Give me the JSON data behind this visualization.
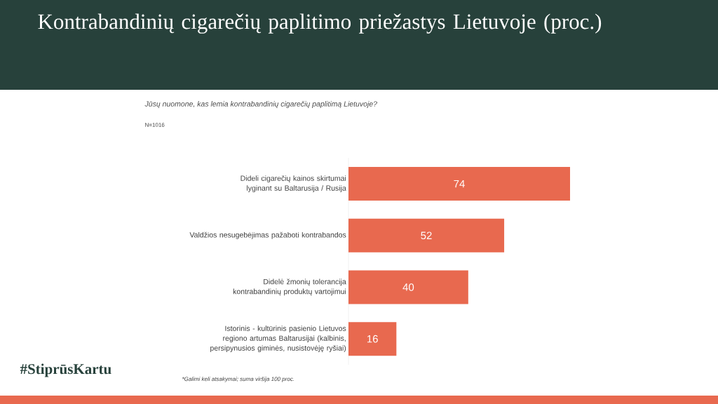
{
  "chart_data": {
    "type": "bar",
    "orientation": "horizontal",
    "title": "Kontrabandinių cigarečių paplitimo priežastys Lietuvoje (proc.)",
    "subtitle": "Jūsų nuomone, kas lemia kontrabandinių cigarečių paplitimą Lietuvoje?",
    "categories": [
      "Dideli cigarečių kainos skirtumai lyginant su Baltarusija / Rusija",
      "Valdžios nesugebėjimas pažaboti kontrabandos",
      "Didelė žmonių tolerancija kontrabandinių produktų vartojimui",
      "Istorinis - kultūrinis pasienio Lietuvos regiono artumas Baltarusijai (kalbinis, persipynusios giminės, nusistovėję ryšiai)"
    ],
    "values": [
      74,
      52,
      40,
      16
    ],
    "color": "#e8694f",
    "data_labels": true,
    "annotations": [
      "N=1016",
      "*Galimi keli atsakymai; suma viršija 100 proc.",
      "#StiprūsKartu"
    ]
  }
}
